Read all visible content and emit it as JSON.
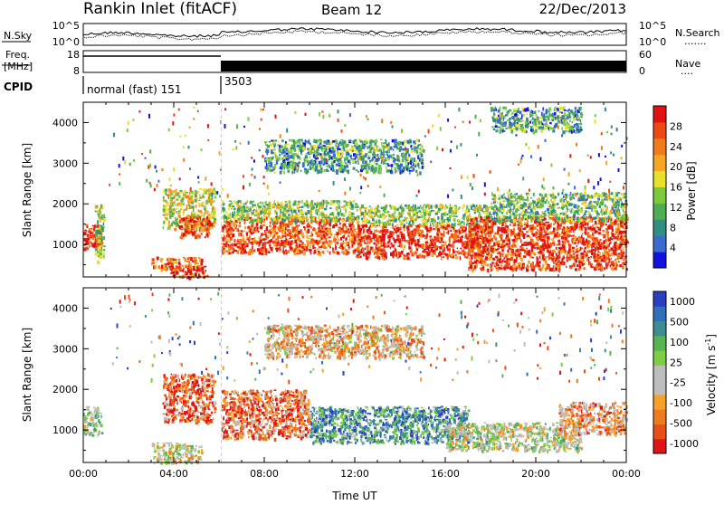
{
  "header": {
    "station": "Rankin Inlet (fitACF)",
    "beam": "Beam 12",
    "date": "22/Dec/2013"
  },
  "strips": {
    "nsky": {
      "label": "N.Sky",
      "right_label": "N.Search",
      "right_marker": ".......",
      "ticks": [
        "10^5",
        "10^0"
      ]
    },
    "freq": {
      "label_line1": "Freq.",
      "label_line2": "[MHz]",
      "left_ticks": [
        "18",
        "8"
      ],
      "right_label": "Nave",
      "right_marker": "....",
      "right_ticks": [
        "60",
        "0"
      ]
    },
    "cpid": {
      "label": "CPID",
      "segments": [
        {
          "label": "normal (fast) 151",
          "start_h": 0.0,
          "end_h": 6.1
        },
        {
          "label": "3503",
          "start_h": 6.1,
          "end_h": 24.0
        }
      ]
    }
  },
  "colors": {
    "power_scale": [
      "#1212e0",
      "#3b6bd1",
      "#2e8f82",
      "#4fae54",
      "#7ccb3c",
      "#e8e12c",
      "#f5a623",
      "#f07b1a",
      "#ec4a12",
      "#e01212"
    ],
    "velocity_scale": [
      "#2a40c0",
      "#3070b8",
      "#3c8f8e",
      "#58b452",
      "#7dce46",
      "#bdbdbd",
      "#bdbdbd",
      "#f5a02a",
      "#ef7b20",
      "#e85018",
      "#e01515"
    ]
  },
  "chart_data": [
    {
      "type": "heatmap",
      "title": "",
      "xlabel": "",
      "ylabel": "Slant Range [km]",
      "x_unit": "hours UT",
      "xlim": [
        0,
        24
      ],
      "ylim": [
        200,
        4500
      ],
      "yticks": [
        1000,
        2000,
        3000,
        4000
      ],
      "colorbar": {
        "label": "Power [dB]",
        "ticks": [
          "4",
          "8",
          "12",
          "16",
          "20",
          "24",
          "28"
        ],
        "range": [
          0,
          30
        ]
      },
      "regions": [
        {
          "t0": 0.0,
          "t1": 0.8,
          "r0": 900,
          "r1": 1500,
          "level": 0.95
        },
        {
          "t0": 0.5,
          "t1": 0.9,
          "r0": 600,
          "r1": 2000,
          "level": 0.45
        },
        {
          "t0": 3.0,
          "t1": 5.2,
          "r0": 400,
          "r1": 700,
          "level": 0.8
        },
        {
          "t0": 3.8,
          "t1": 5.5,
          "r0": 200,
          "r1": 500,
          "level": 0.9
        },
        {
          "t0": 3.5,
          "t1": 5.8,
          "r0": 1400,
          "r1": 2400,
          "level": 0.55
        },
        {
          "t0": 4.2,
          "t1": 5.6,
          "r0": 1200,
          "r1": 1700,
          "level": 0.9
        },
        {
          "t0": 6.1,
          "t1": 12.0,
          "r0": 800,
          "r1": 1700,
          "level": 0.85
        },
        {
          "t0": 6.1,
          "t1": 12.0,
          "r0": 1600,
          "r1": 2100,
          "level": 0.45
        },
        {
          "t0": 12.0,
          "t1": 18.0,
          "r0": 700,
          "r1": 1500,
          "level": 0.9
        },
        {
          "t0": 12.0,
          "t1": 18.0,
          "r0": 1500,
          "r1": 2000,
          "level": 0.45
        },
        {
          "t0": 17.0,
          "t1": 24.0,
          "r0": 400,
          "r1": 1700,
          "level": 0.9
        },
        {
          "t0": 18.0,
          "t1": 24.0,
          "r0": 1600,
          "r1": 2300,
          "level": 0.4
        },
        {
          "t0": 8.0,
          "t1": 15.0,
          "r0": 2800,
          "r1": 3600,
          "level": 0.3
        },
        {
          "t0": 18.0,
          "t1": 22.0,
          "r0": 3800,
          "r1": 4400,
          "level": 0.3
        }
      ]
    },
    {
      "type": "heatmap",
      "title": "",
      "xlabel": "Time UT",
      "ylabel": "Slant Range [km]",
      "x_unit": "hours UT",
      "xlim": [
        0,
        24
      ],
      "ylim": [
        200,
        4500
      ],
      "yticks": [
        1000,
        2000,
        3000,
        4000
      ],
      "xticks": [
        "00:00",
        "04:00",
        "08:00",
        "12:00",
        "16:00",
        "20:00",
        "00:00"
      ],
      "colorbar": {
        "label_main": "Velocity",
        "label_unit": "[m s",
        "label_exp": "-1",
        "label_close": "]",
        "ticks": [
          "1000",
          "500",
          "100",
          "25",
          "-25",
          "-100",
          "-500",
          "-1000"
        ],
        "range": [
          -1000,
          1000
        ]
      },
      "regions": [
        {
          "t0": 0.0,
          "t1": 0.8,
          "r0": 900,
          "r1": 1600,
          "level": 0.55
        },
        {
          "t0": 3.0,
          "t1": 5.2,
          "r0": 200,
          "r1": 700,
          "level": 0.45
        },
        {
          "t0": 3.5,
          "t1": 5.8,
          "r0": 1200,
          "r1": 2400,
          "level": 0.15
        },
        {
          "t0": 6.1,
          "t1": 10.0,
          "r0": 800,
          "r1": 2000,
          "level": 0.2
        },
        {
          "t0": 10.0,
          "t1": 17.0,
          "r0": 700,
          "r1": 1600,
          "level": 0.75
        },
        {
          "t0": 16.0,
          "t1": 22.0,
          "r0": 500,
          "r1": 1200,
          "level": 0.5
        },
        {
          "t0": 21.0,
          "t1": 24.0,
          "r0": 900,
          "r1": 1700,
          "level": 0.3
        },
        {
          "t0": 8.0,
          "t1": 15.0,
          "r0": 2800,
          "r1": 3600,
          "level": 0.35
        }
      ]
    }
  ]
}
